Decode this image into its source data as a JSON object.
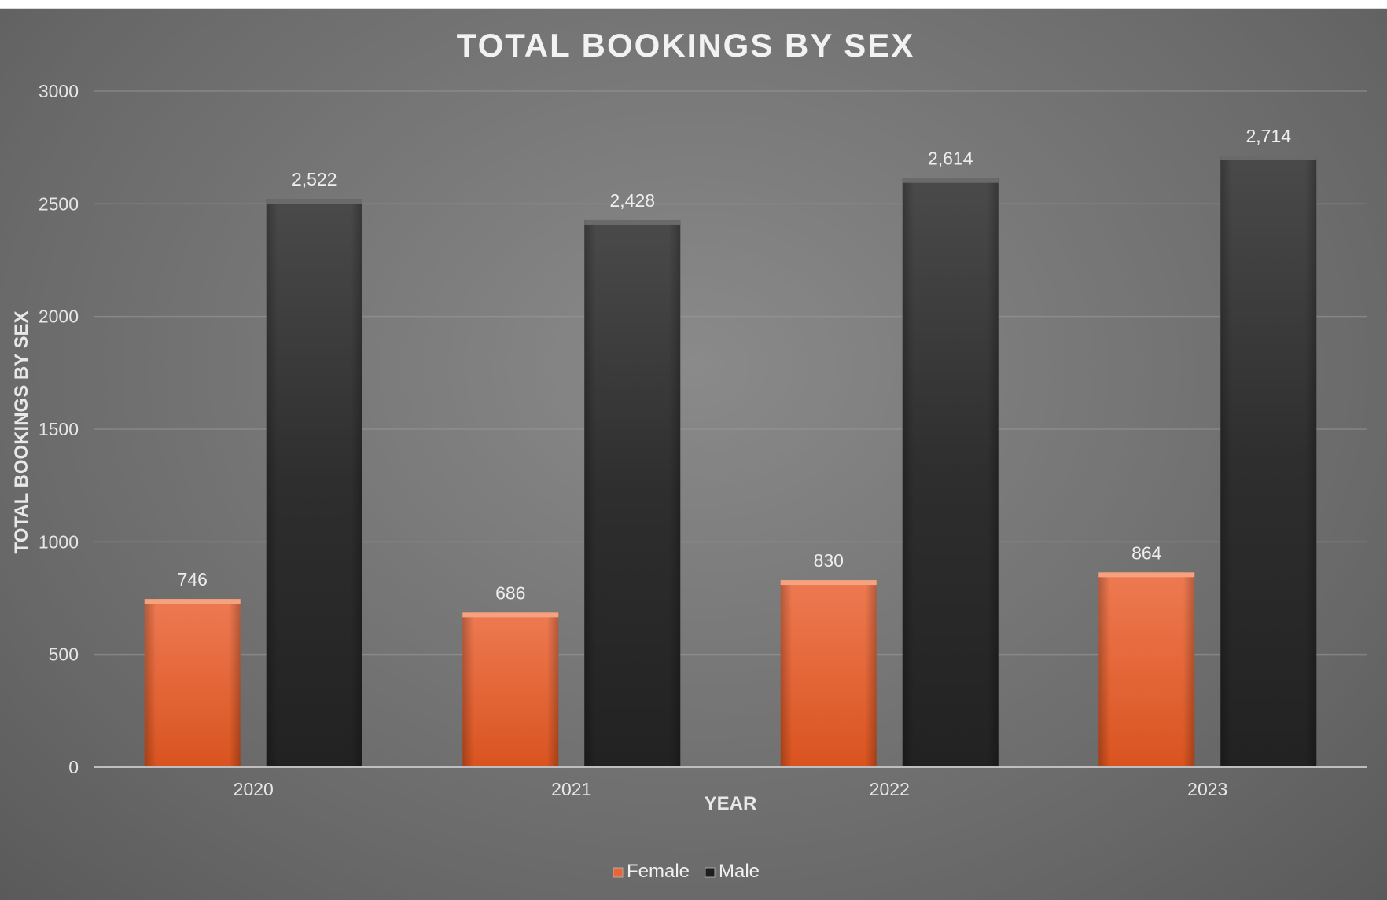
{
  "chart_data": {
    "type": "bar",
    "title": "TOTAL BOOKINGS BY SEX",
    "xlabel": "YEAR",
    "ylabel": "TOTAL BOOKINGS BY SEX",
    "categories": [
      "2020",
      "2021",
      "2022",
      "2023"
    ],
    "series": [
      {
        "name": "Female",
        "values": [
          746,
          686,
          830,
          864
        ],
        "labels": [
          "746",
          "686",
          "830",
          "864"
        ],
        "color": "#e8643a"
      },
      {
        "name": "Male",
        "values": [
          2522,
          2428,
          2614,
          2714
        ],
        "labels": [
          "2,522",
          "2,428",
          "2,614",
          "2,714"
        ],
        "color": "#2e2e2e"
      }
    ],
    "ylim": [
      0,
      3000
    ],
    "yticks": [
      0,
      500,
      1000,
      1500,
      2000,
      2500,
      3000
    ],
    "grid": true,
    "legend_position": "bottom"
  }
}
